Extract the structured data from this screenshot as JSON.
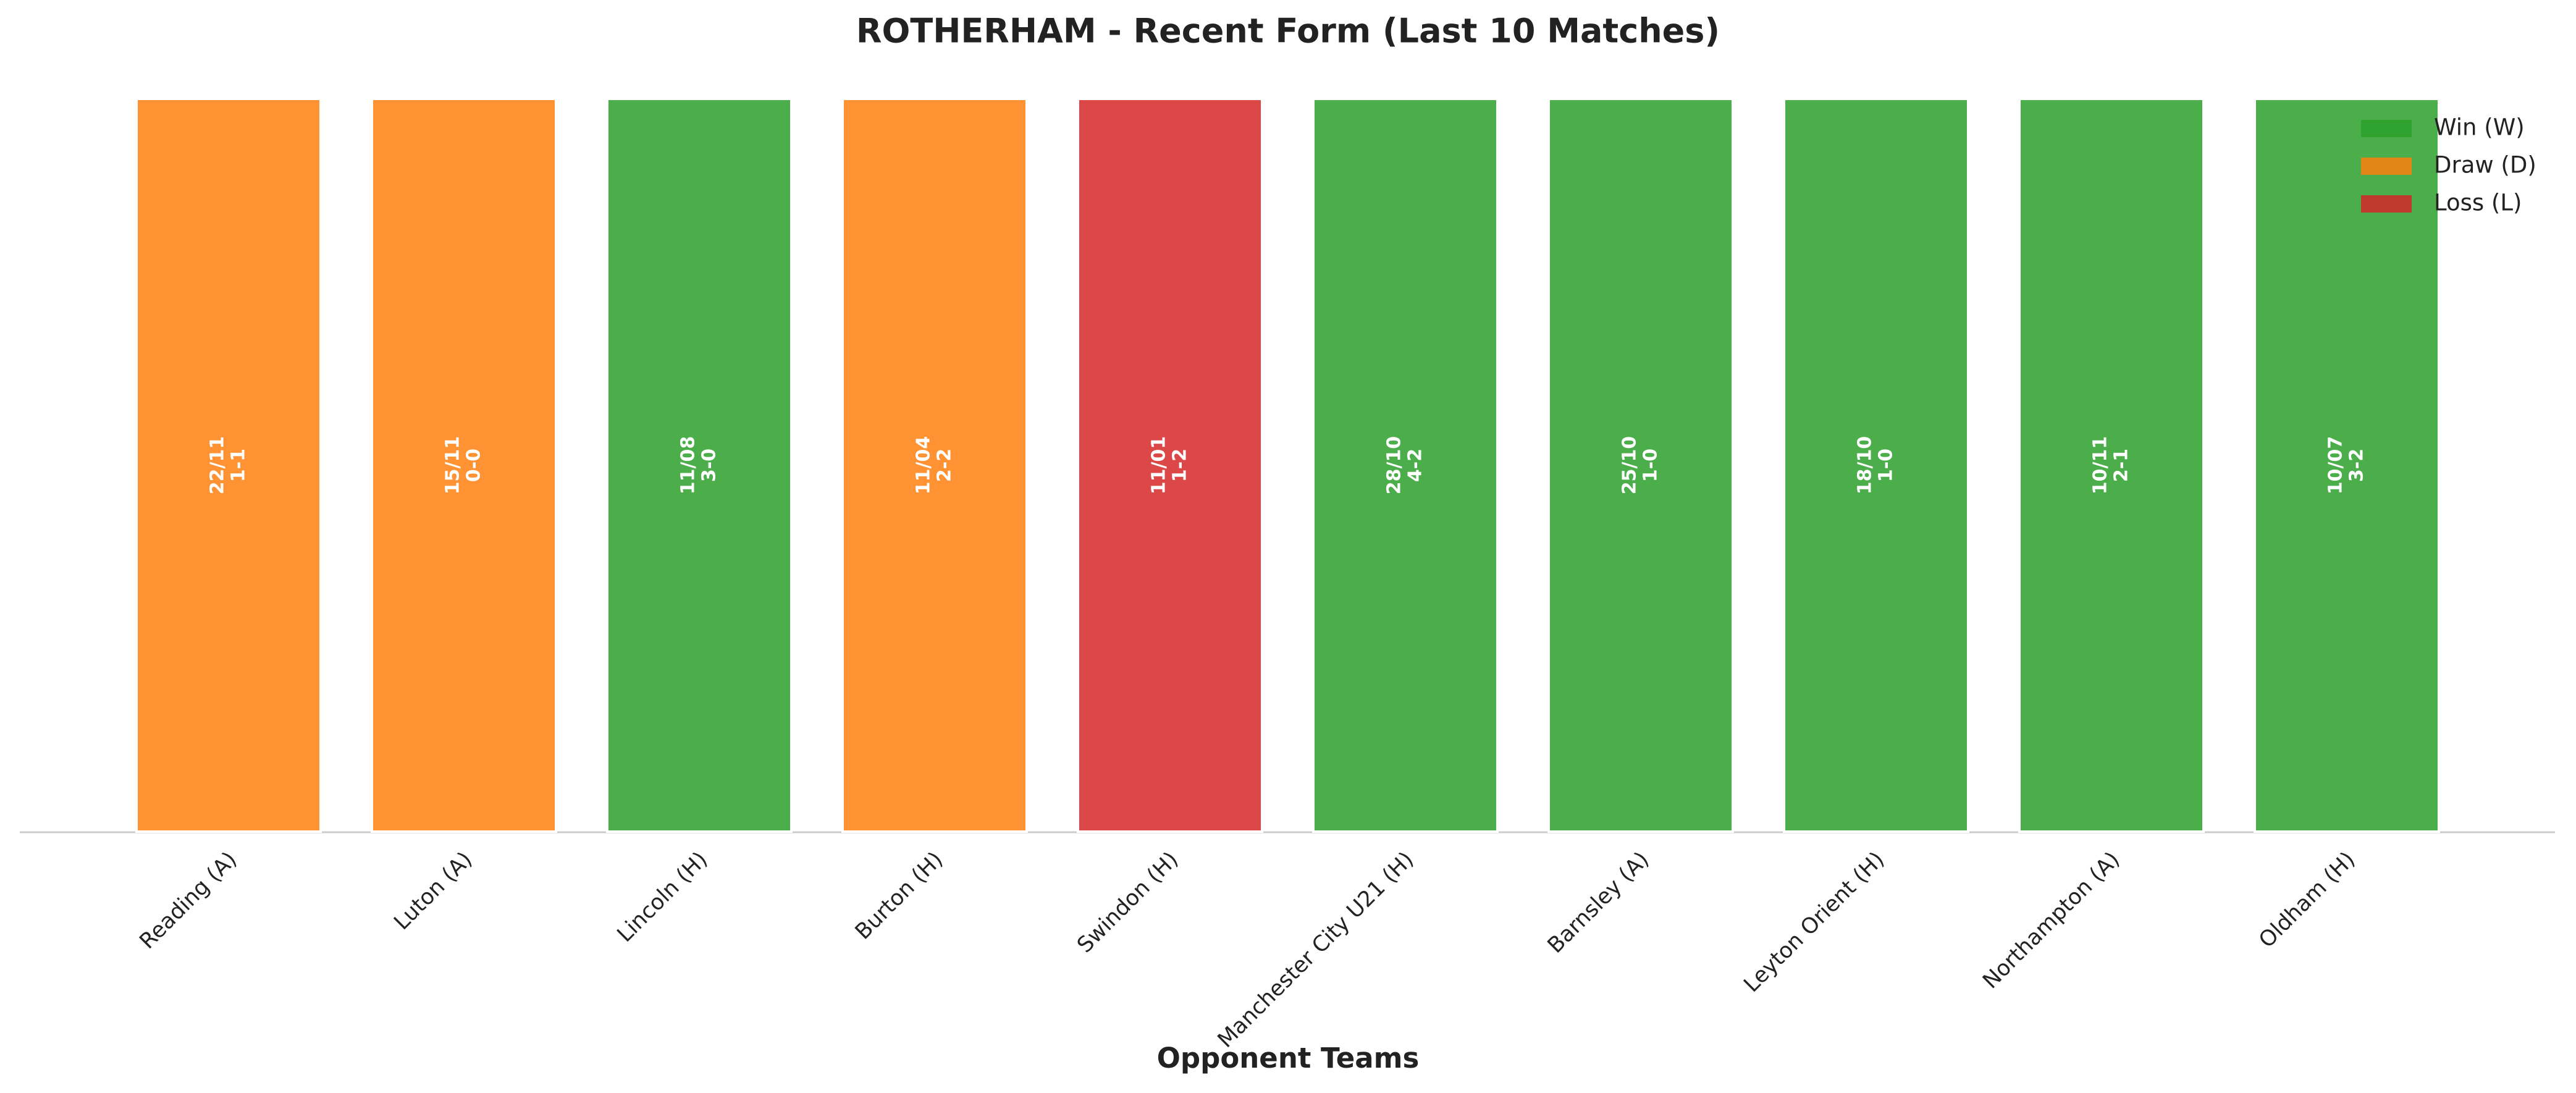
{
  "chart_data": {
    "type": "bar",
    "title": "ROTHERHAM - Recent Form (Last 10 Matches)",
    "x_label": "Opponent Teams",
    "categories": [
      "Reading (A)",
      "Luton (A)",
      "Lincoln (H)",
      "Burton (H)",
      "Swindon (H)",
      "Manchester City U21 (H)",
      "Barnsley (A)",
      "Leyton Orient (H)",
      "Northampton (A)",
      "Oldham (H)"
    ],
    "values": [
      1,
      1,
      1,
      1,
      1,
      1,
      1,
      1,
      1,
      1
    ],
    "dates": [
      "22/11",
      "15/11",
      "11/08",
      "11/04",
      "11/01",
      "28/10",
      "25/10",
      "18/10",
      "10/11",
      "10/07"
    ],
    "scores": [
      "1-1",
      "0-0",
      "3-0",
      "2-2",
      "1-2",
      "4-2",
      "1-0",
      "1-0",
      "2-1",
      "3-2"
    ],
    "bar_colors": [
      "#ff7f0e",
      "#ff7f0e",
      "#2ca02c",
      "#ff7f0e",
      "#d62728",
      "#2ca02c",
      "#2ca02c",
      "#2ca02c",
      "#2ca02c",
      "#2ca02c"
    ],
    "ylim": [
      0,
      1
    ],
    "legend_position": "upper right",
    "legend": [
      {
        "name": "Win (W)",
        "color": "#2ca02c"
      },
      {
        "name": "Draw (D)",
        "color": "#ff7f0e"
      },
      {
        "name": "Loss (L)",
        "color": "#d62728"
      }
    ]
  }
}
